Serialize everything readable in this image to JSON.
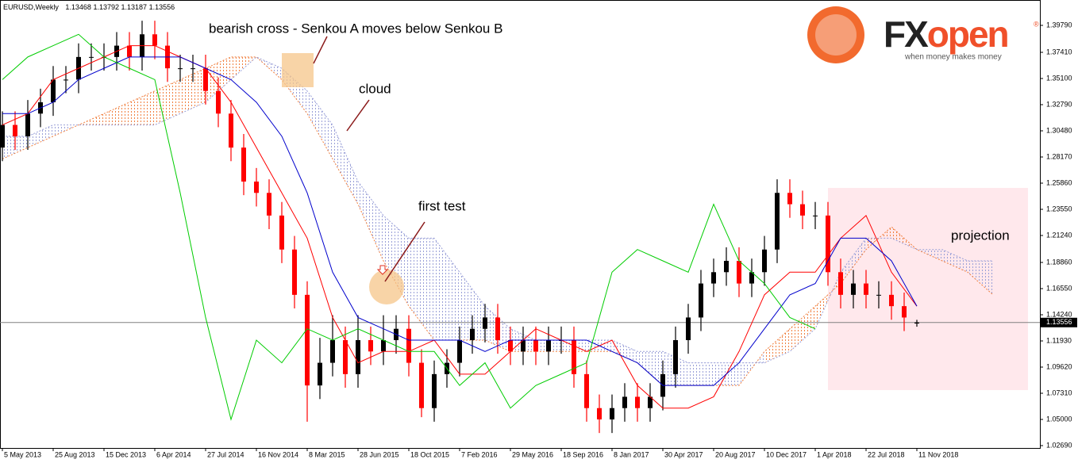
{
  "header": {
    "symbol": "EURUSD,Weekly",
    "open": 1.13468,
    "high": 1.13792,
    "low": 1.13187,
    "close": 1.13556
  },
  "logo": {
    "fx": "FX",
    "open": "open",
    "mark": "®",
    "tagline": "when money makes money"
  },
  "annotations": {
    "bearish_cross": "bearish cross - Senkou A moves below Senkou B",
    "cloud": "cloud",
    "first_test": "first test",
    "projection": "projection"
  },
  "chart_data": {
    "type": "candlestick",
    "xlim": [
      -0.75,
      326
    ],
    "ylim": [
      1.0248,
      1.4203
    ],
    "yticks": [
      {
        "value": 1.3979,
        "label": "1.39790"
      },
      {
        "value": 1.3741,
        "label": "1.37410"
      },
      {
        "value": 1.351,
        "label": "1.35100"
      },
      {
        "value": 1.3279,
        "label": "1.32790"
      },
      {
        "value": 1.3048,
        "label": "1.30480"
      },
      {
        "value": 1.2817,
        "label": "1.28170"
      },
      {
        "value": 1.2586,
        "label": "1.25860"
      },
      {
        "value": 1.2355,
        "label": "1.23550"
      },
      {
        "value": 1.2124,
        "label": "1.21240"
      },
      {
        "value": 1.1886,
        "label": "1.18860"
      },
      {
        "value": 1.1655,
        "label": "1.16550"
      },
      {
        "value": 1.1424,
        "label": "1.14240"
      },
      {
        "value": 1.1193,
        "label": "1.11930"
      },
      {
        "value": 1.0962,
        "label": "1.09620"
      },
      {
        "value": 1.0731,
        "label": "1.07310"
      },
      {
        "value": 1.05,
        "label": "1.05000"
      },
      {
        "value": 1.0269,
        "label": "1.02690"
      }
    ],
    "xticks": [
      {
        "value": 0,
        "label": "5 May 2013"
      },
      {
        "value": 16,
        "label": "25 Aug 2013"
      },
      {
        "value": 32,
        "label": "15 Dec 2013"
      },
      {
        "value": 48,
        "label": "6 Apr 2014"
      },
      {
        "value": 64,
        "label": "27 Jul 2014"
      },
      {
        "value": 80,
        "label": "16 Nov 2014"
      },
      {
        "value": 96,
        "label": "8 Mar 2015"
      },
      {
        "value": 112,
        "label": "28 Jun 2015"
      },
      {
        "value": 128,
        "label": "18 Oct 2015"
      },
      {
        "value": 144,
        "label": "7 Feb 2016"
      },
      {
        "value": 160,
        "label": "29 May 2016"
      },
      {
        "value": 176,
        "label": "18 Sep 2016"
      },
      {
        "value": 192,
        "label": "8 Jan 2017"
      },
      {
        "value": 208,
        "label": "30 Apr 2017"
      },
      {
        "value": 224,
        "label": "20 Aug 2017"
      },
      {
        "value": 240,
        "label": "10 Dec 2017"
      },
      {
        "value": 256,
        "label": "1 Apr 2018"
      },
      {
        "value": 272,
        "label": "22 Jul 2018"
      },
      {
        "value": 288,
        "label": "11 Nov 2018"
      }
    ],
    "current_price": 1.13556,
    "bull_color": "#000000",
    "bear_color": "#ff0000",
    "x": [
      0,
      4,
      8,
      12,
      16,
      20,
      24,
      28,
      32,
      36,
      40,
      44,
      48,
      52,
      56,
      60,
      64,
      68,
      72,
      76,
      80,
      84,
      88,
      92,
      96,
      100,
      104,
      108,
      112,
      116,
      120,
      124,
      128,
      132,
      136,
      140,
      144,
      148,
      152,
      156,
      160,
      164,
      168,
      172,
      176,
      180,
      184,
      188,
      192,
      196,
      200,
      204,
      208,
      212,
      216,
      220,
      224,
      228,
      232,
      236,
      240,
      244,
      248,
      252,
      256,
      260,
      264,
      268,
      272,
      276,
      280,
      284,
      288
    ],
    "candles": [
      [
        1.29,
        1.322,
        1.278,
        1.31
      ],
      [
        1.31,
        1.322,
        1.288,
        1.3
      ],
      [
        1.3,
        1.332,
        1.288,
        1.32
      ],
      [
        1.32,
        1.342,
        1.308,
        1.33
      ],
      [
        1.33,
        1.362,
        1.318,
        1.35
      ],
      [
        1.35,
        1.362,
        1.338,
        1.35
      ],
      [
        1.35,
        1.382,
        1.338,
        1.37
      ],
      [
        1.37,
        1.382,
        1.358,
        1.37
      ],
      [
        1.37,
        1.382,
        1.358,
        1.37
      ],
      [
        1.37,
        1.392,
        1.358,
        1.38
      ],
      [
        1.38,
        1.392,
        1.358,
        1.37
      ],
      [
        1.37,
        1.402,
        1.358,
        1.39
      ],
      [
        1.39,
        1.402,
        1.368,
        1.38
      ],
      [
        1.38,
        1.392,
        1.348,
        1.36
      ],
      [
        1.36,
        1.372,
        1.348,
        1.36
      ],
      [
        1.36,
        1.372,
        1.348,
        1.36
      ],
      [
        1.36,
        1.372,
        1.328,
        1.34
      ],
      [
        1.34,
        1.352,
        1.308,
        1.32
      ],
      [
        1.32,
        1.332,
        1.278,
        1.29
      ],
      [
        1.29,
        1.302,
        1.248,
        1.26
      ],
      [
        1.26,
        1.272,
        1.238,
        1.25
      ],
      [
        1.25,
        1.262,
        1.218,
        1.23
      ],
      [
        1.23,
        1.242,
        1.188,
        1.2
      ],
      [
        1.2,
        1.212,
        1.148,
        1.16
      ],
      [
        1.16,
        1.172,
        1.048,
        1.08
      ],
      [
        1.08,
        1.122,
        1.068,
        1.1
      ],
      [
        1.1,
        1.142,
        1.088,
        1.12
      ],
      [
        1.12,
        1.132,
        1.078,
        1.09
      ],
      [
        1.09,
        1.142,
        1.078,
        1.12
      ],
      [
        1.12,
        1.132,
        1.098,
        1.11
      ],
      [
        1.11,
        1.142,
        1.098,
        1.12
      ],
      [
        1.12,
        1.142,
        1.108,
        1.13
      ],
      [
        1.13,
        1.142,
        1.088,
        1.1
      ],
      [
        1.1,
        1.112,
        1.052,
        1.06
      ],
      [
        1.06,
        1.102,
        1.048,
        1.09
      ],
      [
        1.09,
        1.112,
        1.078,
        1.1
      ],
      [
        1.1,
        1.132,
        1.088,
        1.12
      ],
      [
        1.12,
        1.142,
        1.108,
        1.13
      ],
      [
        1.13,
        1.152,
        1.118,
        1.14
      ],
      [
        1.14,
        1.152,
        1.108,
        1.12
      ],
      [
        1.12,
        1.132,
        1.098,
        1.11
      ],
      [
        1.11,
        1.132,
        1.098,
        1.12
      ],
      [
        1.12,
        1.132,
        1.098,
        1.11
      ],
      [
        1.11,
        1.132,
        1.098,
        1.12
      ],
      [
        1.12,
        1.132,
        1.108,
        1.12
      ],
      [
        1.12,
        1.132,
        1.078,
        1.09
      ],
      [
        1.09,
        1.102,
        1.048,
        1.06
      ],
      [
        1.06,
        1.072,
        1.038,
        1.05
      ],
      [
        1.05,
        1.072,
        1.038,
        1.06
      ],
      [
        1.06,
        1.082,
        1.048,
        1.07
      ],
      [
        1.07,
        1.082,
        1.048,
        1.06
      ],
      [
        1.06,
        1.082,
        1.048,
        1.07
      ],
      [
        1.07,
        1.102,
        1.058,
        1.09
      ],
      [
        1.09,
        1.132,
        1.078,
        1.12
      ],
      [
        1.12,
        1.152,
        1.108,
        1.14
      ],
      [
        1.14,
        1.182,
        1.128,
        1.17
      ],
      [
        1.17,
        1.192,
        1.158,
        1.18
      ],
      [
        1.18,
        1.202,
        1.168,
        1.19
      ],
      [
        1.19,
        1.202,
        1.158,
        1.17
      ],
      [
        1.17,
        1.192,
        1.158,
        1.18
      ],
      [
        1.18,
        1.212,
        1.168,
        1.2
      ],
      [
        1.2,
        1.262,
        1.188,
        1.25
      ],
      [
        1.25,
        1.262,
        1.228,
        1.24
      ],
      [
        1.24,
        1.252,
        1.218,
        1.23
      ],
      [
        1.23,
        1.242,
        1.218,
        1.23
      ],
      [
        1.23,
        1.242,
        1.168,
        1.18
      ],
      [
        1.18,
        1.192,
        1.148,
        1.16
      ],
      [
        1.16,
        1.182,
        1.148,
        1.17
      ],
      [
        1.17,
        1.182,
        1.148,
        1.16
      ],
      [
        1.16,
        1.172,
        1.148,
        1.16
      ],
      [
        1.16,
        1.172,
        1.138,
        1.15
      ],
      [
        1.15,
        1.162,
        1.128,
        1.14
      ],
      [
        1.13468,
        1.13792,
        1.13187,
        1.13556
      ]
    ],
    "lines": [
      {
        "color": "#ff0000",
        "x": [
          0,
          8,
          16,
          24,
          32,
          40,
          48,
          56,
          64,
          72,
          80,
          88,
          96,
          104,
          112,
          120,
          128,
          136,
          144,
          152,
          160,
          168,
          176,
          184,
          192,
          200,
          208,
          216,
          224,
          232,
          240,
          248,
          256,
          264,
          272,
          280,
          288
        ],
        "values": [
          1.31,
          1.32,
          1.35,
          1.36,
          1.37,
          1.38,
          1.38,
          1.37,
          1.36,
          1.33,
          1.29,
          1.25,
          1.21,
          1.14,
          1.1,
          1.11,
          1.11,
          1.12,
          1.09,
          1.09,
          1.11,
          1.13,
          1.12,
          1.11,
          1.12,
          1.08,
          1.06,
          1.06,
          1.07,
          1.11,
          1.16,
          1.18,
          1.18,
          1.21,
          1.23,
          1.18,
          1.15
        ]
      },
      {
        "color": "#0000cc",
        "x": [
          0,
          8,
          16,
          24,
          32,
          40,
          48,
          56,
          64,
          72,
          80,
          88,
          96,
          104,
          112,
          120,
          128,
          136,
          144,
          152,
          160,
          168,
          176,
          184,
          192,
          200,
          208,
          216,
          224,
          232,
          240,
          248,
          256,
          264,
          272,
          280,
          288
        ],
        "values": [
          1.32,
          1.32,
          1.33,
          1.35,
          1.36,
          1.37,
          1.37,
          1.37,
          1.36,
          1.35,
          1.33,
          1.3,
          1.25,
          1.18,
          1.14,
          1.13,
          1.12,
          1.12,
          1.12,
          1.11,
          1.12,
          1.12,
          1.12,
          1.12,
          1.11,
          1.1,
          1.08,
          1.08,
          1.08,
          1.1,
          1.13,
          1.16,
          1.17,
          1.21,
          1.21,
          1.19,
          1.15
        ]
      },
      {
        "color": "#00cc00",
        "x": [
          0,
          8,
          16,
          24,
          32,
          40,
          48,
          56,
          64,
          72,
          80,
          88,
          96,
          104,
          112,
          120,
          128,
          136,
          144,
          152,
          160,
          168,
          176,
          184,
          192,
          200,
          208,
          216,
          224,
          232,
          240,
          248,
          256
        ],
        "values": [
          1.35,
          1.37,
          1.38,
          1.39,
          1.37,
          1.36,
          1.35,
          1.25,
          1.14,
          1.05,
          1.12,
          1.1,
          1.13,
          1.12,
          1.13,
          1.12,
          1.11,
          1.11,
          1.08,
          1.1,
          1.06,
          1.08,
          1.09,
          1.1,
          1.18,
          1.2,
          1.19,
          1.18,
          1.24,
          1.19,
          1.17,
          1.14,
          1.13
        ]
      }
    ],
    "cloud": {
      "up_color": "#f08040",
      "down_color": "#9aa0d8",
      "x": [
        0,
        8,
        16,
        24,
        32,
        40,
        48,
        56,
        64,
        72,
        80,
        88,
        96,
        104,
        112,
        120,
        128,
        136,
        144,
        152,
        160,
        168,
        176,
        184,
        192,
        200,
        208,
        216,
        224,
        232,
        240,
        248,
        256,
        264,
        272,
        280,
        288,
        296,
        304,
        312
      ],
      "span_a": [
        1.28,
        1.29,
        1.3,
        1.31,
        1.32,
        1.33,
        1.34,
        1.35,
        1.36,
        1.37,
        1.37,
        1.35,
        1.32,
        1.28,
        1.24,
        1.19,
        1.15,
        1.12,
        1.12,
        1.12,
        1.11,
        1.11,
        1.11,
        1.11,
        1.11,
        1.1,
        1.08,
        1.08,
        1.08,
        1.08,
        1.11,
        1.13,
        1.15,
        1.17,
        1.2,
        1.22,
        1.2,
        1.19,
        1.18,
        1.16
      ],
      "span_b": [
        1.3,
        1.3,
        1.31,
        1.31,
        1.31,
        1.31,
        1.31,
        1.32,
        1.33,
        1.35,
        1.37,
        1.36,
        1.34,
        1.31,
        1.26,
        1.23,
        1.21,
        1.21,
        1.18,
        1.15,
        1.13,
        1.12,
        1.12,
        1.12,
        1.12,
        1.11,
        1.11,
        1.1,
        1.1,
        1.1,
        1.1,
        1.11,
        1.13,
        1.18,
        1.21,
        1.21,
        1.2,
        1.2,
        1.19,
        1.19
      ]
    }
  }
}
